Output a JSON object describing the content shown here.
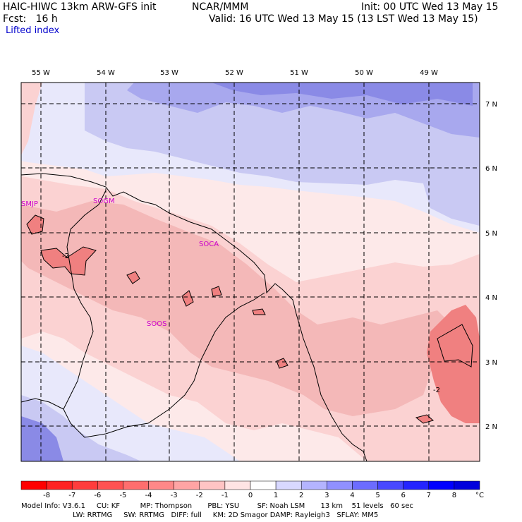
{
  "header": {
    "model_title": "HAIC-HIWC 13km ARW-GFS init",
    "org": "NCAR/MMM",
    "init": "Init: 00 UTC Wed 13 May 15",
    "fcst": "Fcst:   16 h",
    "valid": "Valid: 16 UTC Wed 13 May 15 (13 LST Wed 13 May 15)",
    "field": "Lifted index"
  },
  "map": {
    "lon_labels": [
      "55 W",
      "54 W",
      "53 W",
      "52 W",
      "51 W",
      "50 W",
      "49 W"
    ],
    "lat_labels": [
      "7 N",
      "6 N",
      "5 N",
      "4 N",
      "3 N",
      "2 N"
    ],
    "stations": [
      "SMJP",
      "SOGM",
      "SOCA",
      "SOOS"
    ],
    "contour_label": "-2",
    "colors": {
      "neg_strong": "#f08080",
      "neg_mid": "#f4a4a4",
      "neg_light": "#fbd2d2",
      "neg_faint": "#fde9e9",
      "pos_faint": "#e8e8fb",
      "pos_light": "#c9c9f3",
      "pos_mid": "#a8a8ee",
      "pos_strong": "#8a8ae6",
      "station": "#cc00cc"
    }
  },
  "colorbar": {
    "values": [
      "-8",
      "-7",
      "-6",
      "-5",
      "-4",
      "-3",
      "-2",
      "-1",
      "0",
      "1",
      "2",
      "3",
      "4",
      "5",
      "6",
      "7",
      "8"
    ],
    "unit": "°C",
    "colors": [
      "#ff0000",
      "#ff2222",
      "#ff3c3c",
      "#ff5252",
      "#ff6e6e",
      "#ff8888",
      "#ffa4a4",
      "#ffc4c4",
      "#ffe4e4",
      "#ffffff",
      "#d8d8ff",
      "#b4b4ff",
      "#9090ff",
      "#6c6cff",
      "#4848ff",
      "#2424ff",
      "#0000ff",
      "#0000dd"
    ]
  },
  "footer": {
    "line1": "Model Info: V3.6.1     CU: KF         MP: Thompson       PBL: YSU        SF: Noah LSM       13 km    51 levels   60 sec",
    "line2": "                       LW: RRTMG     SW: RRTMG   DIFF: full     KM: 2D Smagor DAMP: Rayleigh3   SFLAY: MM5"
  }
}
